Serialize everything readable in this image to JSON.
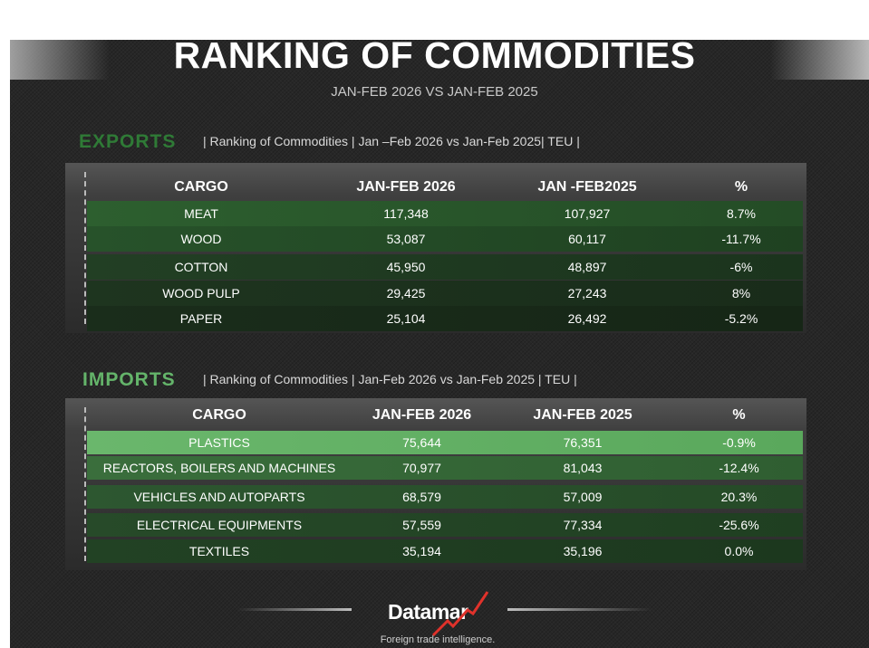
{
  "title": "RANKING OF COMMODITIES",
  "subtitle": "JAN-FEB  2026 VS JAN-FEB 2025",
  "exports": {
    "label": "EXPORTS",
    "description": "| Ranking of Commodities | Jan –Feb 2026 vs Jan-Feb 2025| TEU |",
    "headers": {
      "cargo": "CARGO",
      "current": "JAN-FEB 2026",
      "previous": "JAN -FEB2025",
      "pct": "%"
    },
    "rows": [
      {
        "cargo": "MEAT",
        "current": "117,348",
        "previous": "107,927",
        "pct": "8.7%"
      },
      {
        "cargo": "WOOD",
        "current": "53,087",
        "previous": "60,117",
        "pct": "-11.7%"
      },
      {
        "cargo": "COTTON",
        "current": "45,950",
        "previous": "48,897",
        "pct": "-6%"
      },
      {
        "cargo": "WOOD PULP",
        "current": "29,425",
        "previous": "27,243",
        "pct": "8%"
      },
      {
        "cargo": "PAPER",
        "current": "25,104",
        "previous": "26,492",
        "pct": "-5.2%"
      }
    ]
  },
  "imports": {
    "label": "IMPORTS",
    "description": "| Ranking of Commodities | Jan-Feb 2026 vs Jan-Feb 2025  | TEU |",
    "headers": {
      "cargo": "CARGO",
      "current": "JAN-FEB 2026",
      "previous": "JAN-FEB 2025",
      "pct": "%"
    },
    "rows": [
      {
        "cargo": "PLASTICS",
        "current": "75,644",
        "previous": "76,351",
        "pct": "-0.9%"
      },
      {
        "cargo": "REACTORS, BOILERS AND MACHINES",
        "current": "70,977",
        "previous": "81,043",
        "pct": "-12.4%"
      },
      {
        "cargo": "VEHICLES AND AUTOPARTS",
        "current": "68,579",
        "previous": "57,009",
        "pct": "20.3%"
      },
      {
        "cargo": "ELECTRICAL EQUIPMENTS",
        "current": "57,559",
        "previous": "77,334",
        "pct": "-25.6%"
      },
      {
        "cargo": "TEXTILES",
        "current": "35,194",
        "previous": "35,196",
        "pct": "0.0%"
      }
    ]
  },
  "footer": {
    "logo_text": "Datamar",
    "tagline": "Foreign trade intelligence."
  },
  "colors": {
    "background": "#272727",
    "exports_label": "#2f7a36",
    "imports_label": "#64b46a",
    "logo_accent": "#e0322b"
  }
}
